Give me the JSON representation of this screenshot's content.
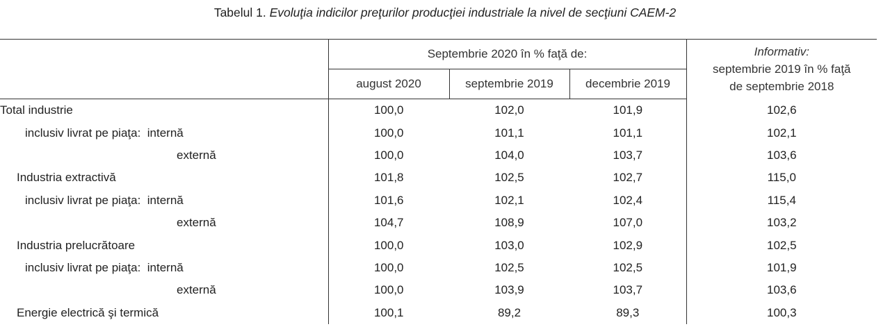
{
  "title": {
    "prefix": "Tabelul 1.",
    "text": "Evoluţia indicilor preţurilor producţiei industriale la nivel de secţiuni CAEM-2"
  },
  "header": {
    "group": "Septembrie 2020 în % faţă de:",
    "informativ": "Informativ:",
    "informativ_line2": "septembrie 2019 în % faţă",
    "informativ_line3": "de septembrie 2018",
    "cols": [
      "august 2020",
      "septembrie 2019",
      "decembrie 2019"
    ]
  },
  "rows": [
    {
      "label": "Total industrie",
      "values": [
        "100,0",
        "102,0",
        "101,9",
        "102,6"
      ]
    },
    {
      "label": "inclusiv livrat pe piaţa:  internă",
      "values": [
        "100,0",
        "101,1",
        "101,1",
        "102,1"
      ]
    },
    {
      "label": "externă",
      "values": [
        "100,0",
        "104,0",
        "103,7",
        "103,6"
      ]
    },
    {
      "label": "Industria extractivă",
      "values": [
        "101,8",
        "102,5",
        "102,7",
        "115,0"
      ]
    },
    {
      "label": "inclusiv livrat pe piaţa:  internă",
      "values": [
        "101,6",
        "102,1",
        "102,4",
        "115,4"
      ]
    },
    {
      "label": "externă",
      "values": [
        "104,7",
        "108,9",
        "107,0",
        "103,2"
      ]
    },
    {
      "label": "Industria prelucrătoare",
      "values": [
        "100,0",
        "103,0",
        "102,9",
        "102,5"
      ]
    },
    {
      "label": "inclusiv livrat pe piaţa:  internă",
      "values": [
        "100,0",
        "102,5",
        "102,5",
        "101,9"
      ]
    },
    {
      "label": "externă",
      "values": [
        "100,0",
        "103,9",
        "103,7",
        "103,6"
      ]
    },
    {
      "label": "Energie electrică şi termică",
      "values": [
        "100,1",
        "89,2",
        "89,3",
        "100,3"
      ]
    }
  ]
}
